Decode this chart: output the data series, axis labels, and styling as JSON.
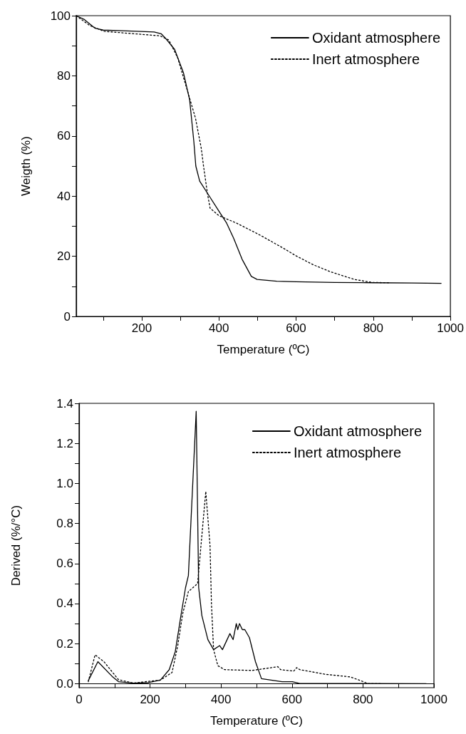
{
  "chart_data": [
    {
      "type": "line",
      "xlabel": "Temperature (ºC)",
      "ylabel": "Weigth (%)",
      "xlim": [
        30,
        1000
      ],
      "xticks": [
        {
          "value": 100,
          "label": null
        },
        200,
        {
          "value": 300,
          "label": null
        },
        400,
        {
          "value": 500,
          "label": null
        },
        600,
        {
          "value": 700,
          "label": null
        },
        800,
        {
          "value": 900,
          "label": null
        },
        1000
      ],
      "ylim": [
        0,
        100
      ],
      "yticks": [
        0,
        {
          "value": 10,
          "label": null
        },
        20,
        {
          "value": 30,
          "label": null
        },
        40,
        {
          "value": 50,
          "label": null
        },
        60,
        {
          "value": 70,
          "label": null
        },
        80,
        {
          "value": 90,
          "label": null
        },
        100
      ],
      "legend": "top right",
      "marker": "none",
      "series": [
        {
          "name": "Oxidant atmosphere",
          "color": "#000000",
          "line_style": "solid",
          "x": [
            30,
            50,
            79,
            100,
            150,
            232,
            250,
            262,
            285,
            308,
            324,
            335,
            340,
            350,
            370,
            400,
            420,
            438,
            460,
            484,
            499,
            550,
            600,
            700,
            800,
            900,
            976
          ],
          "values": [
            100,
            98.8,
            95.8,
            95.2,
            95,
            94.6,
            94,
            92.4,
            88.8,
            81,
            72,
            58,
            50,
            45,
            41,
            35,
            31,
            26,
            19,
            13.3,
            12.3,
            11.7,
            11.5,
            11.3,
            11.2,
            11.1,
            11
          ]
        },
        {
          "name": "Inert atmosphere",
          "color": "#000000",
          "line_style": "dotted",
          "x": [
            30,
            64,
            102,
            150,
            247,
            270,
            293,
            316,
            339,
            354,
            360,
            370,
            377,
            400,
            446,
            507,
            568,
            599,
            644,
            690,
            751,
            797,
            840
          ],
          "values": [
            100,
            96.8,
            94.8,
            94.3,
            93.3,
            91.9,
            86,
            76,
            66,
            56,
            50,
            41,
            36,
            33.5,
            31,
            27,
            22.6,
            20.2,
            17.2,
            14.8,
            12.3,
            11.3,
            11.2
          ]
        }
      ]
    },
    {
      "type": "line",
      "xlabel": "Temperature (ºC)",
      "ylabel": "Derived (%/°C)",
      "xlim": [
        0,
        1000
      ],
      "xticks": [
        0,
        {
          "value": 100,
          "label": null
        },
        200,
        {
          "value": 300,
          "label": null
        },
        400,
        {
          "value": 500,
          "label": null
        },
        600,
        {
          "value": 700,
          "label": null
        },
        800,
        {
          "value": 900,
          "label": null
        },
        1000
      ],
      "ylim": [
        -0.02,
        1.4
      ],
      "yticks": [
        {
          "value": 0,
          "label": "0.0"
        },
        {
          "value": 0.1,
          "label": null
        },
        0.2,
        {
          "value": 0.3,
          "label": null
        },
        0.4,
        {
          "value": 0.5,
          "label": null
        },
        0.6,
        {
          "value": 0.7,
          "label": null
        },
        0.8,
        {
          "value": 0.9,
          "label": null
        },
        {
          "value": 1,
          "label": "1.0"
        },
        {
          "value": 1.1,
          "label": null
        },
        1.2,
        {
          "value": 1.3,
          "label": null
        },
        1.4
      ],
      "legend": "top right",
      "marker": "none",
      "series": [
        {
          "name": "Oxidant atmosphere",
          "color": "#000000",
          "line_style": "solid",
          "x": [
            26,
            53,
            95,
            111,
            153,
            195,
            229,
            254,
            271,
            287,
            300,
            308,
            330,
            337,
            346,
            363,
            379,
            396,
            404,
            425,
            434,
            443,
            447,
            452,
            460,
            467,
            480,
            497,
            514,
            572,
            601,
            622,
            978
          ],
          "values": [
            0.015,
            0.11,
            0.033,
            0.01,
            0.003,
            0.005,
            0.018,
            0.07,
            0.16,
            0.34,
            0.48,
            0.54,
            1.36,
            0.48,
            0.34,
            0.22,
            0.17,
            0.19,
            0.17,
            0.25,
            0.22,
            0.3,
            0.27,
            0.3,
            0.27,
            0.27,
            0.23,
            0.11,
            0.025,
            0.01,
            0.01,
            0.001,
            0
          ]
        },
        {
          "name": "Inert atmosphere",
          "color": "#000000",
          "line_style": "dotted",
          "x": [
            26,
            45,
            70,
            111,
            153,
            229,
            262,
            278,
            292,
            308,
            334,
            339,
            357,
            369,
            373,
            379,
            391,
            410,
            488,
            560,
            568,
            605,
            613,
            622,
            697,
            764,
            798,
            815,
            850
          ],
          "values": [
            0.01,
            0.144,
            0.11,
            0.02,
            0.003,
            0.018,
            0.056,
            0.19,
            0.35,
            0.46,
            0.5,
            0.6,
            0.96,
            0.69,
            0.4,
            0.17,
            0.09,
            0.07,
            0.066,
            0.085,
            0.07,
            0.063,
            0.08,
            0.07,
            0.046,
            0.034,
            0.012,
            0,
            0
          ]
        }
      ]
    }
  ]
}
